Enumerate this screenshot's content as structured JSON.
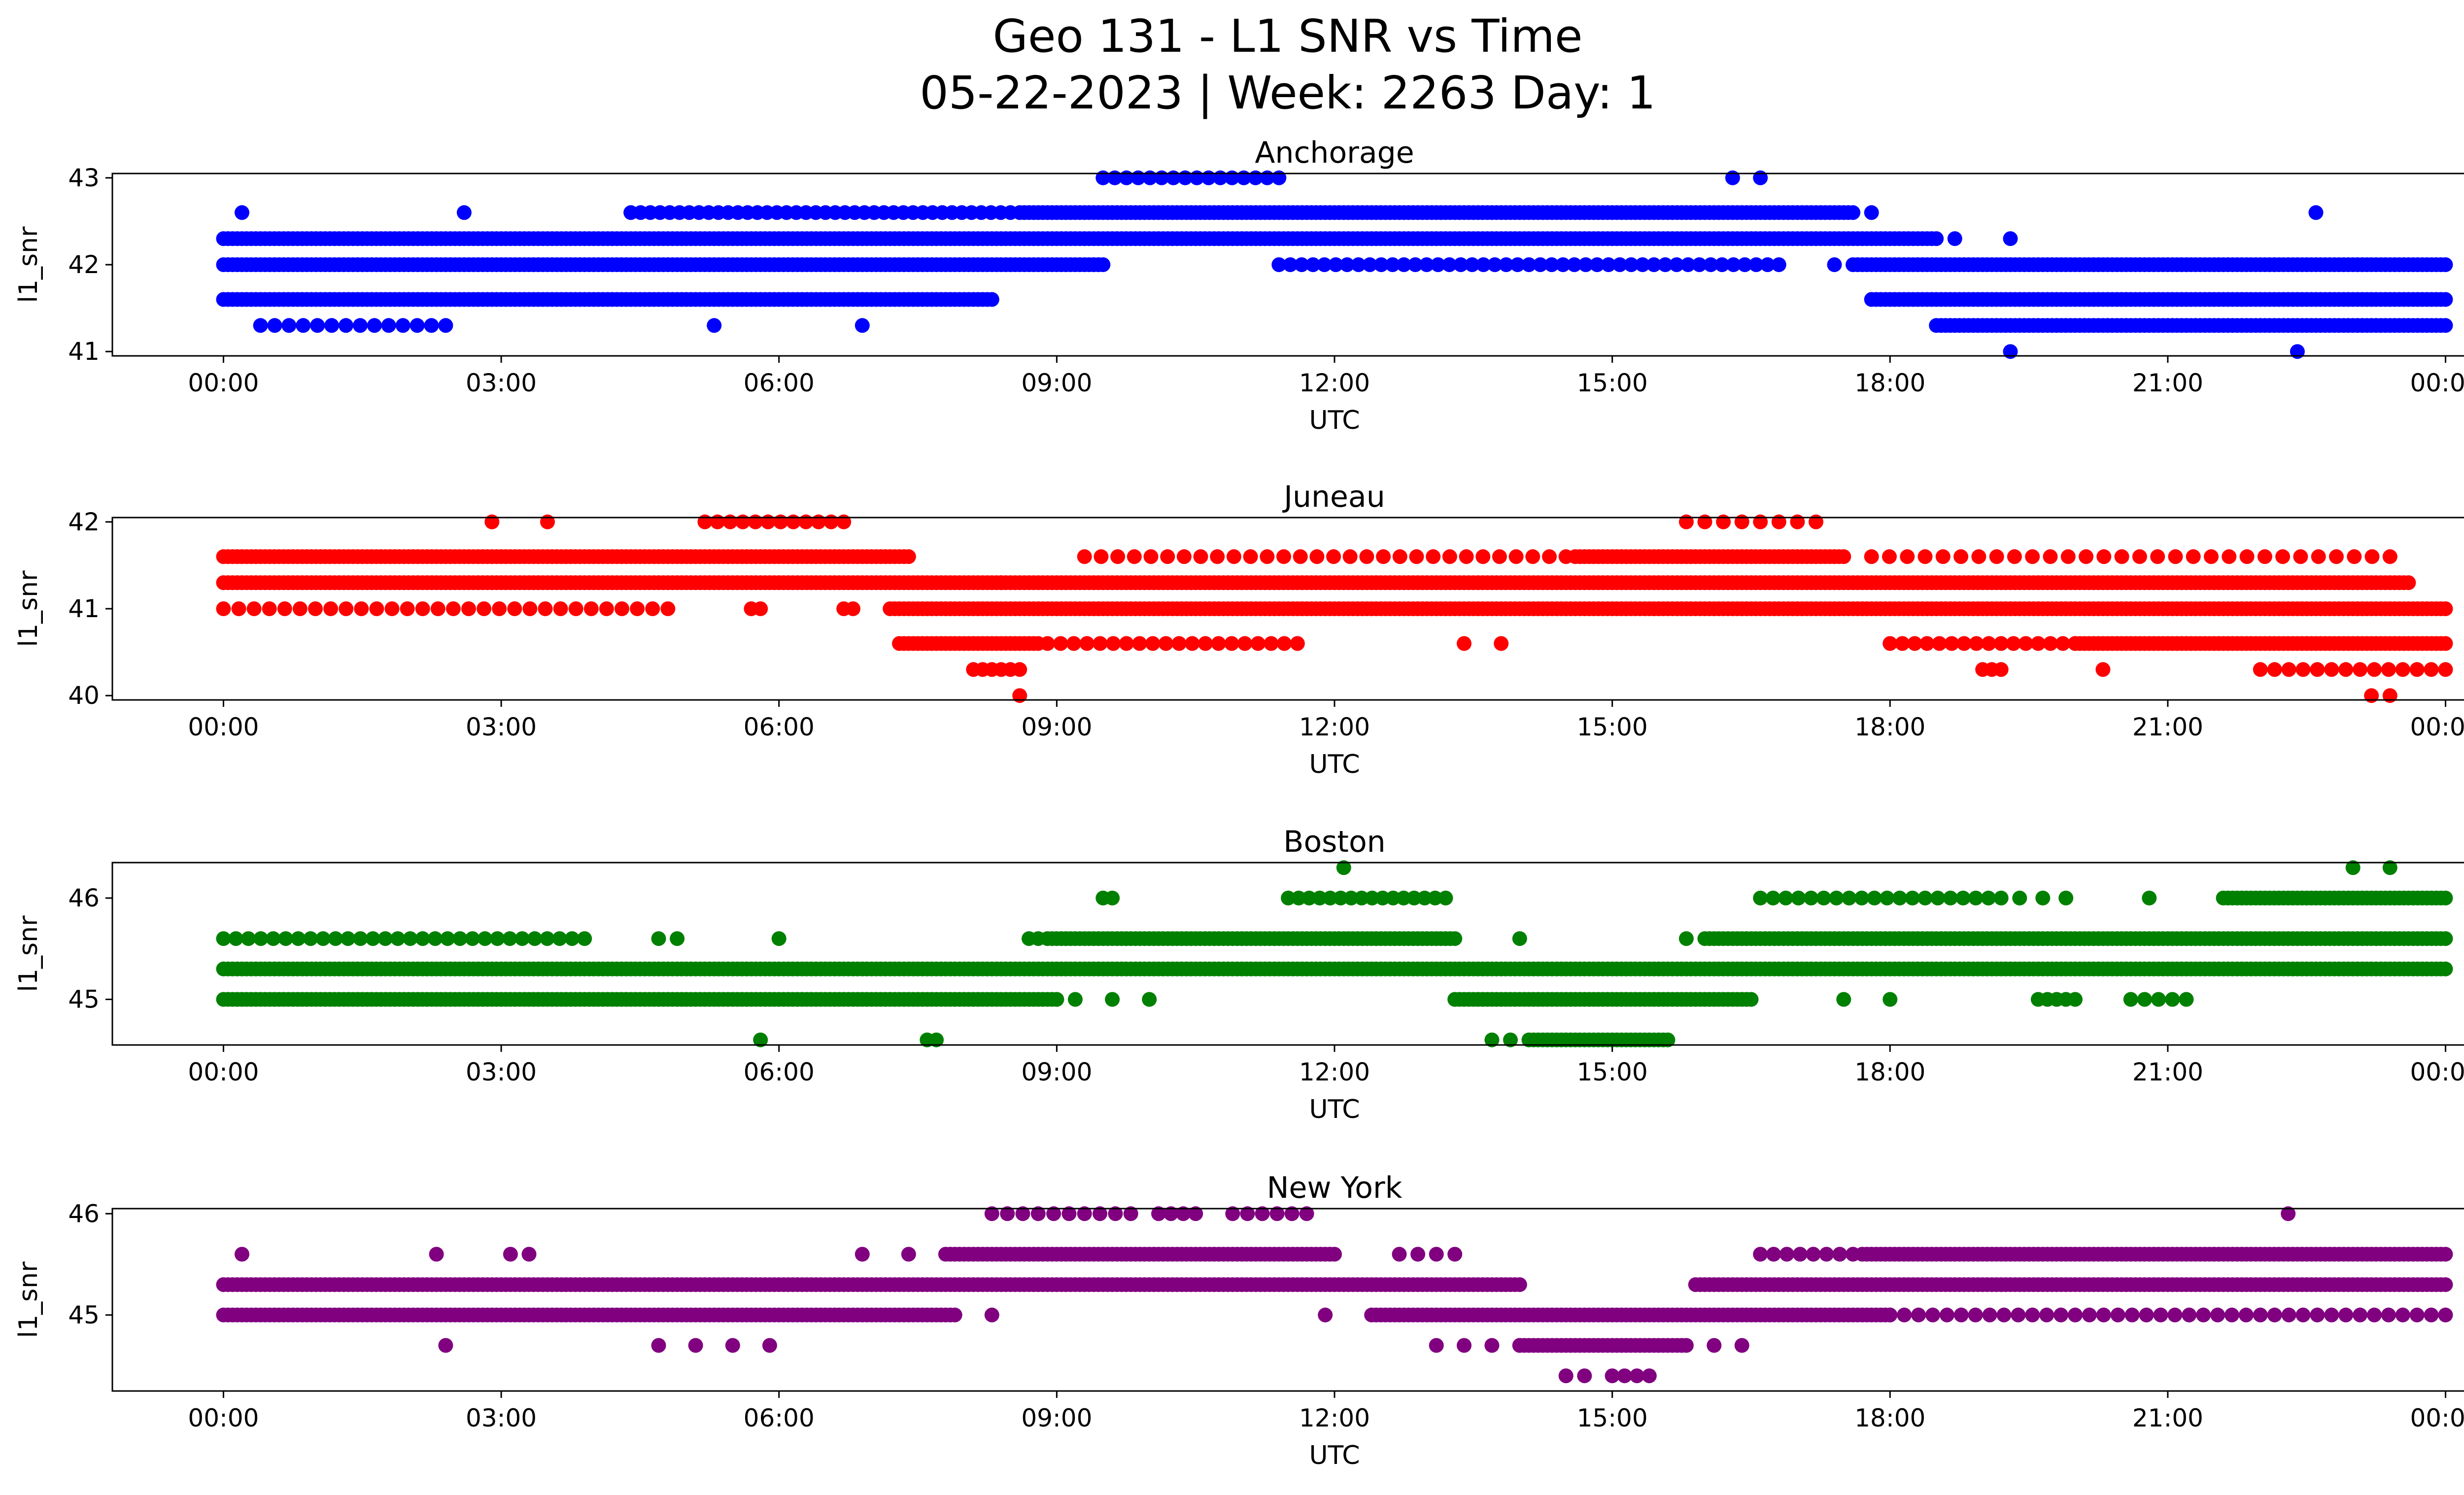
{
  "figure": {
    "title_line1": "Geo 131 - L1 SNR vs Time",
    "title_line2": "05-22-2023 | Week: 2263 Day: 1"
  },
  "chart_data": [
    {
      "type": "scatter",
      "title": "Anchorage",
      "xlabel": "UTC",
      "ylabel": "l1_snr",
      "color": "#0000ff",
      "xlim": [
        "00:00",
        "24:00"
      ],
      "ylim": [
        40.95,
        43.05
      ],
      "x_ticks": [
        "00:00",
        "03:00",
        "06:00",
        "09:00",
        "12:00",
        "15:00",
        "18:00",
        "21:00",
        "00:00"
      ],
      "y_ticks": [
        41,
        42,
        43
      ],
      "levels": [
        {
          "y": 42.3,
          "ranges": [
            [
              0.0,
              18.5
            ]
          ],
          "sparse": [
            [
              18.7,
              19.3,
              2
            ]
          ]
        },
        {
          "y": 42.6,
          "ranges": [
            [
              8.6,
              17.6
            ]
          ],
          "sparse": [
            [
              0.2,
              0.2,
              1
            ],
            [
              2.6,
              2.6,
              1
            ],
            [
              4.4,
              8.5,
              40
            ],
            [
              17.8,
              17.8,
              1
            ],
            [
              22.6,
              22.6,
              1
            ]
          ]
        },
        {
          "y": 42.0,
          "ranges": [
            [
              0.0,
              9.5
            ],
            [
              17.6,
              24.0
            ]
          ],
          "sparse": [
            [
              11.4,
              16.8,
              45
            ],
            [
              17.4,
              17.4,
              1
            ]
          ]
        },
        {
          "y": 41.6,
          "ranges": [
            [
              0.0,
              8.3
            ],
            [
              17.8,
              24.0
            ]
          ],
          "sparse": []
        },
        {
          "y": 41.3,
          "ranges": [
            [
              18.5,
              24.0
            ]
          ],
          "sparse": [
            [
              0.4,
              2.4,
              14
            ]
          ]
        },
        {
          "y": 43.0,
          "ranges": [],
          "sparse": [
            [
              9.5,
              11.4,
              16
            ],
            [
              16.3,
              16.6,
              2
            ]
          ]
        },
        {
          "y": 41.0,
          "ranges": [],
          "sparse": [
            [
              19.3,
              19.3,
              1
            ],
            [
              22.4,
              22.4,
              1
            ]
          ]
        }
      ],
      "extra_points": [
        [
          5.3,
          41.3
        ],
        [
          6.9,
          41.3
        ]
      ]
    },
    {
      "type": "scatter",
      "title": "Juneau",
      "xlabel": "UTC",
      "ylabel": "l1_snr",
      "color": "#ff0000",
      "xlim": [
        "00:00",
        "24:00"
      ],
      "ylim": [
        39.95,
        42.05
      ],
      "x_ticks": [
        "00:00",
        "03:00",
        "06:00",
        "09:00",
        "12:00",
        "15:00",
        "18:00",
        "21:00",
        "00:00"
      ],
      "y_ticks": [
        40,
        41,
        42
      ],
      "levels": [
        {
          "y": 41.3,
          "ranges": [
            [
              0.0,
              8.4
            ],
            [
              8.4,
              23.6
            ]
          ],
          "sparse": []
        },
        {
          "y": 41.6,
          "ranges": [
            [
              0.0,
              7.4
            ],
            [
              14.6,
              17.5
            ]
          ],
          "sparse": [
            [
              9.3,
              14.5,
              30
            ],
            [
              17.8,
              23.4,
              30
            ]
          ]
        },
        {
          "y": 41.0,
          "ranges": [
            [
              7.2,
              24.0
            ]
          ],
          "sparse": [
            [
              0.0,
              4.8,
              30
            ],
            [
              5.7,
              5.8,
              2
            ],
            [
              6.7,
              6.8,
              2
            ]
          ]
        },
        {
          "y": 40.6,
          "ranges": [
            [
              7.3,
              8.8
            ],
            [
              20.0,
              24.0
            ]
          ],
          "sparse": [
            [
              8.9,
              11.6,
              20
            ],
            [
              18.0,
              20.0,
              16
            ],
            [
              13.4,
              13.8,
              2
            ]
          ]
        },
        {
          "y": 40.3,
          "ranges": [],
          "sparse": [
            [
              8.1,
              8.6,
              6
            ],
            [
              19.0,
              19.2,
              3
            ],
            [
              20.3,
              20.3,
              1
            ],
            [
              22.0,
              24.0,
              14
            ]
          ]
        },
        {
          "y": 42.0,
          "ranges": [],
          "sparse": [
            [
              2.9,
              3.5,
              2
            ],
            [
              5.2,
              6.7,
              12
            ],
            [
              15.8,
              17.2,
              8
            ]
          ]
        },
        {
          "y": 40.0,
          "ranges": [],
          "sparse": [
            [
              8.6,
              8.6,
              1
            ],
            [
              23.2,
              23.4,
              2
            ]
          ]
        }
      ],
      "extra_points": []
    },
    {
      "type": "scatter",
      "title": "Boston",
      "xlabel": "UTC",
      "ylabel": "l1_snr",
      "color": "#008000",
      "xlim": [
        "00:00",
        "24:00"
      ],
      "ylim": [
        44.55,
        46.35
      ],
      "x_ticks": [
        "00:00",
        "03:00",
        "06:00",
        "09:00",
        "12:00",
        "15:00",
        "18:00",
        "21:00",
        "00:00"
      ],
      "y_ticks": [
        45,
        46
      ],
      "levels": [
        {
          "y": 45.3,
          "ranges": [
            [
              0.0,
              24.0
            ]
          ],
          "sparse": []
        },
        {
          "y": 45.6,
          "ranges": [
            [
              8.9,
              13.3
            ],
            [
              16.0,
              24.0
            ]
          ],
          "sparse": [
            [
              0.0,
              3.9,
              30
            ],
            [
              4.7,
              4.9,
              2
            ],
            [
              6.0,
              6.0,
              1
            ],
            [
              8.7,
              8.8,
              2
            ],
            [
              14.0,
              14.0,
              1
            ],
            [
              15.8,
              15.8,
              1
            ]
          ]
        },
        {
          "y": 45.0,
          "ranges": [
            [
              0.0,
              9.0
            ],
            [
              13.3,
              16.5
            ]
          ],
          "sparse": [
            [
              9.2,
              10.0,
              3
            ],
            [
              17.5,
              17.5,
              1
            ],
            [
              18.0,
              18.0,
              1
            ],
            [
              19.6,
              20.0,
              5
            ],
            [
              20.6,
              21.2,
              5
            ]
          ]
        },
        {
          "y": 46.0,
          "ranges": [
            [
              21.6,
              24.0
            ]
          ],
          "sparse": [
            [
              9.5,
              9.6,
              2
            ],
            [
              11.5,
              13.2,
              16
            ],
            [
              16.6,
              19.2,
              20
            ],
            [
              19.4,
              19.9,
              3
            ],
            [
              20.8,
              20.8,
              1
            ]
          ]
        },
        {
          "y": 44.6,
          "ranges": [
            [
              14.1,
              15.6
            ]
          ],
          "sparse": [
            [
              5.8,
              5.8,
              1
            ],
            [
              7.6,
              7.7,
              2
            ],
            [
              13.7,
              13.9,
              2
            ]
          ]
        },
        {
          "y": 46.3,
          "ranges": [],
          "sparse": [
            [
              12.1,
              12.1,
              1
            ],
            [
              23.0,
              23.4,
              2
            ]
          ]
        }
      ],
      "extra_points": []
    },
    {
      "type": "scatter",
      "title": "New York",
      "xlabel": "UTC",
      "ylabel": "l1_snr",
      "color": "#800080",
      "xlim": [
        "00:00",
        "24:00"
      ],
      "ylim": [
        44.25,
        46.05
      ],
      "x_ticks": [
        "00:00",
        "03:00",
        "06:00",
        "09:00",
        "12:00",
        "15:00",
        "18:00",
        "21:00",
        "00:00"
      ],
      "y_ticks": [
        45,
        46
      ],
      "levels": [
        {
          "y": 45.3,
          "ranges": [
            [
              0.0,
              14.0
            ],
            [
              15.9,
              24.0
            ]
          ],
          "sparse": []
        },
        {
          "y": 45.0,
          "ranges": [
            [
              0.0,
              7.9
            ],
            [
              12.4,
              18.0
            ]
          ],
          "sparse": [
            [
              8.3,
              8.3,
              1
            ],
            [
              11.9,
              11.9,
              1
            ],
            [
              18.0,
              24.0,
              40
            ]
          ]
        },
        {
          "y": 45.6,
          "ranges": [
            [
              7.8,
              12.0
            ],
            [
              17.7,
              24.0
            ]
          ],
          "sparse": [
            [
              0.2,
              0.2,
              1
            ],
            [
              2.3,
              2.3,
              1
            ],
            [
              3.1,
              3.3,
              2
            ],
            [
              6.9,
              6.9,
              1
            ],
            [
              7.4,
              7.4,
              1
            ],
            [
              12.7,
              13.3,
              4
            ],
            [
              16.6,
              17.6,
              8
            ]
          ]
        },
        {
          "y": 44.7,
          "ranges": [
            [
              14.0,
              15.8
            ]
          ],
          "sparse": [
            [
              2.4,
              2.4,
              1
            ],
            [
              4.7,
              5.5,
              3
            ],
            [
              5.9,
              5.9,
              1
            ],
            [
              13.1,
              14.0,
              4
            ],
            [
              16.1,
              16.4,
              2
            ]
          ]
        },
        {
          "y": 46.0,
          "ranges": [],
          "sparse": [
            [
              8.3,
              9.8,
              10
            ],
            [
              10.1,
              10.5,
              4
            ],
            [
              10.9,
              11.7,
              6
            ],
            [
              22.3,
              22.3,
              1
            ]
          ]
        },
        {
          "y": 44.4,
          "ranges": [],
          "sparse": [
            [
              14.5,
              14.7,
              2
            ],
            [
              15.0,
              15.4,
              4
            ]
          ]
        }
      ],
      "extra_points": []
    }
  ]
}
